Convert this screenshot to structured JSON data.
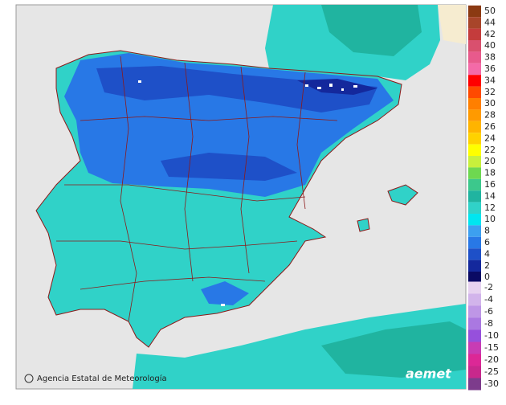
{
  "credit": "Agencia Estatal de Meteorología",
  "logo": "aemet",
  "legend": {
    "positive": [
      {
        "label": "50",
        "color": "#8b3a12"
      },
      {
        "label": "44",
        "color": "#a8452a"
      },
      {
        "label": "42",
        "color": "#c43c3c"
      },
      {
        "label": "40",
        "color": "#d9506e"
      },
      {
        "label": "38",
        "color": "#e85a8c"
      },
      {
        "label": "36",
        "color": "#f46aa8"
      },
      {
        "label": "34",
        "color": "#ff0000"
      },
      {
        "label": "32",
        "color": "#ff4a00"
      },
      {
        "label": "30",
        "color": "#ff7f00"
      },
      {
        "label": "28",
        "color": "#ff9a00"
      },
      {
        "label": "26",
        "color": "#ffb400"
      },
      {
        "label": "24",
        "color": "#ffd200"
      },
      {
        "label": "22",
        "color": "#ffff00"
      },
      {
        "label": "20",
        "color": "#c8f03c"
      },
      {
        "label": "18",
        "color": "#6ed850"
      },
      {
        "label": "16",
        "color": "#3cc88c"
      },
      {
        "label": "14",
        "color": "#20b4a0"
      },
      {
        "label": "12",
        "color": "#30d2c8"
      },
      {
        "label": "10",
        "color": "#00e6f0"
      },
      {
        "label": "8",
        "color": "#3ca0f0"
      },
      {
        "label": "6",
        "color": "#2878e6"
      },
      {
        "label": "4",
        "color": "#1e50c8"
      },
      {
        "label": "2",
        "color": "#14289c"
      },
      {
        "label": "0",
        "color": "#0a0a64"
      }
    ],
    "negative": [
      {
        "label": "-2",
        "color": "#e6d2f0"
      },
      {
        "label": "-4",
        "color": "#d2b4eb"
      },
      {
        "label": "-6",
        "color": "#be96e6"
      },
      {
        "label": "-8",
        "color": "#aa78e1"
      },
      {
        "label": "-10",
        "color": "#9650dc"
      },
      {
        "label": "-15",
        "color": "#c83cb4"
      },
      {
        "label": "-20",
        "color": "#dc2896"
      },
      {
        "label": "-25",
        "color": "#c8288c"
      },
      {
        "label": "-30",
        "color": "#7d3c8c"
      }
    ]
  }
}
